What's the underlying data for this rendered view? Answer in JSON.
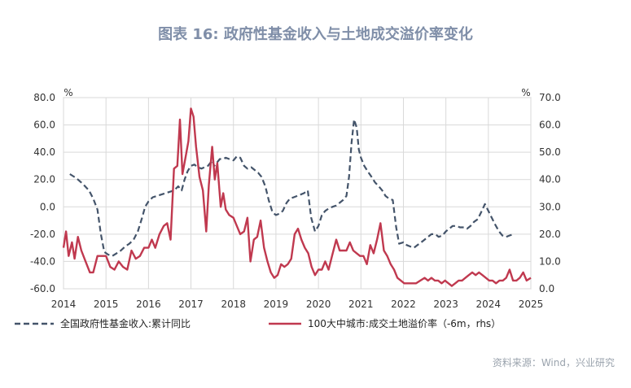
{
  "title": "图表 16: 政府性基金收入与土地成交溢价率变化",
  "source": "资料来源：Wind，兴业研究",
  "chart_data": {
    "type": "line",
    "x_ticks": [
      "2014",
      "2015",
      "2016",
      "2017",
      "2018",
      "2019",
      "2020",
      "2021",
      "2022",
      "2023",
      "2024",
      "2025"
    ],
    "y_left": {
      "unit": "%",
      "min": -60,
      "max": 80,
      "ticks": [
        "80.0",
        "60.0",
        "40.0",
        "20.0",
        "0.0",
        "-20.0",
        "-40.0",
        "-60.0"
      ]
    },
    "y_right": {
      "unit": "%",
      "min": 0,
      "max": 70,
      "ticks": [
        "70.0",
        "60.0",
        "50.0",
        "40.0",
        "30.0",
        "20.0",
        "10.0",
        "0.0"
      ]
    },
    "grid": true,
    "legend_position": "bottom",
    "series": [
      {
        "name": "全国政府性基金收入:累计同比",
        "axis": "left",
        "style": "dashed",
        "color": "#44546a",
        "points": [
          [
            2014.15,
            24
          ],
          [
            2014.3,
            21
          ],
          [
            2014.45,
            17
          ],
          [
            2014.6,
            12
          ],
          [
            2014.7,
            6
          ],
          [
            2014.8,
            -2
          ],
          [
            2014.88,
            -20
          ],
          [
            2014.96,
            -33
          ],
          [
            2015.05,
            -35
          ],
          [
            2015.15,
            -36
          ],
          [
            2015.25,
            -34
          ],
          [
            2015.35,
            -32
          ],
          [
            2015.45,
            -29
          ],
          [
            2015.55,
            -27
          ],
          [
            2015.65,
            -24
          ],
          [
            2015.75,
            -18
          ],
          [
            2015.85,
            -8
          ],
          [
            2015.92,
            0
          ],
          [
            2016.0,
            4
          ],
          [
            2016.1,
            7
          ],
          [
            2016.2,
            8
          ],
          [
            2016.3,
            9
          ],
          [
            2016.4,
            10
          ],
          [
            2016.5,
            11
          ],
          [
            2016.6,
            12
          ],
          [
            2016.7,
            15
          ],
          [
            2016.78,
            12
          ],
          [
            2016.85,
            20
          ],
          [
            2016.92,
            26
          ],
          [
            2017.0,
            30
          ],
          [
            2017.08,
            31
          ],
          [
            2017.16,
            29
          ],
          [
            2017.25,
            28
          ],
          [
            2017.32,
            29
          ],
          [
            2017.4,
            30
          ],
          [
            2017.5,
            34
          ],
          [
            2017.55,
            30
          ],
          [
            2017.6,
            32
          ],
          [
            2017.68,
            35
          ],
          [
            2017.75,
            35
          ],
          [
            2017.82,
            36
          ],
          [
            2017.9,
            35
          ],
          [
            2018.0,
            34
          ],
          [
            2018.08,
            37
          ],
          [
            2018.16,
            36
          ],
          [
            2018.25,
            30
          ],
          [
            2018.33,
            28
          ],
          [
            2018.42,
            29
          ],
          [
            2018.5,
            27
          ],
          [
            2018.58,
            25
          ],
          [
            2018.66,
            22
          ],
          [
            2018.75,
            15
          ],
          [
            2018.83,
            5
          ],
          [
            2018.92,
            -4
          ],
          [
            2019.0,
            -6
          ],
          [
            2019.08,
            -5
          ],
          [
            2019.16,
            -3
          ],
          [
            2019.25,
            3
          ],
          [
            2019.33,
            6
          ],
          [
            2019.42,
            7
          ],
          [
            2019.5,
            8
          ],
          [
            2019.58,
            9
          ],
          [
            2019.66,
            10
          ],
          [
            2019.75,
            12
          ],
          [
            2019.83,
            -8
          ],
          [
            2019.92,
            -18
          ],
          [
            2020.0,
            -14
          ],
          [
            2020.08,
            -6
          ],
          [
            2020.16,
            -3
          ],
          [
            2020.25,
            -1
          ],
          [
            2020.33,
            0
          ],
          [
            2020.42,
            1
          ],
          [
            2020.5,
            3
          ],
          [
            2020.58,
            5
          ],
          [
            2020.66,
            8
          ],
          [
            2020.72,
            22
          ],
          [
            2020.78,
            47
          ],
          [
            2020.84,
            64
          ],
          [
            2020.9,
            58
          ],
          [
            2020.95,
            42
          ],
          [
            2021.0,
            36
          ],
          [
            2021.08,
            30
          ],
          [
            2021.16,
            26
          ],
          [
            2021.25,
            22
          ],
          [
            2021.33,
            18
          ],
          [
            2021.42,
            15
          ],
          [
            2021.5,
            12
          ],
          [
            2021.58,
            8
          ],
          [
            2021.66,
            6
          ],
          [
            2021.75,
            5
          ],
          [
            2021.83,
            -15
          ],
          [
            2021.9,
            -27
          ],
          [
            2022.0,
            -26
          ],
          [
            2022.08,
            -28
          ],
          [
            2022.16,
            -29
          ],
          [
            2022.25,
            -30
          ],
          [
            2022.33,
            -28
          ],
          [
            2022.42,
            -26
          ],
          [
            2022.5,
            -24
          ],
          [
            2022.58,
            -22
          ],
          [
            2022.66,
            -20
          ],
          [
            2022.75,
            -20
          ],
          [
            2022.83,
            -22
          ],
          [
            2022.92,
            -21
          ],
          [
            2023.0,
            -18
          ],
          [
            2023.08,
            -16
          ],
          [
            2023.16,
            -14
          ],
          [
            2023.25,
            -14
          ],
          [
            2023.33,
            -15
          ],
          [
            2023.42,
            -15
          ],
          [
            2023.5,
            -16
          ],
          [
            2023.58,
            -14
          ],
          [
            2023.66,
            -11
          ],
          [
            2023.75,
            -9
          ],
          [
            2023.83,
            -4
          ],
          [
            2023.92,
            2
          ],
          [
            2024.0,
            -3
          ],
          [
            2024.08,
            -8
          ],
          [
            2024.16,
            -13
          ],
          [
            2024.25,
            -18
          ],
          [
            2024.33,
            -21
          ],
          [
            2024.42,
            -22
          ],
          [
            2024.5,
            -21
          ],
          [
            2024.6,
            -20
          ]
        ]
      },
      {
        "name": "100大中城市:成交土地溢价率（-6m，rhs）",
        "axis": "right",
        "style": "solid",
        "color": "#c0394f",
        "points": [
          [
            2014.0,
            15
          ],
          [
            2014.06,
            21
          ],
          [
            2014.12,
            12
          ],
          [
            2014.2,
            17
          ],
          [
            2014.26,
            11
          ],
          [
            2014.34,
            19
          ],
          [
            2014.42,
            14
          ],
          [
            2014.52,
            10
          ],
          [
            2014.62,
            6
          ],
          [
            2014.7,
            6
          ],
          [
            2014.8,
            12
          ],
          [
            2014.9,
            12
          ],
          [
            2015.0,
            12
          ],
          [
            2015.1,
            8
          ],
          [
            2015.2,
            7
          ],
          [
            2015.3,
            10
          ],
          [
            2015.4,
            8
          ],
          [
            2015.5,
            7
          ],
          [
            2015.6,
            14
          ],
          [
            2015.7,
            11
          ],
          [
            2015.8,
            12
          ],
          [
            2015.9,
            15
          ],
          [
            2016.0,
            15
          ],
          [
            2016.08,
            18
          ],
          [
            2016.16,
            15
          ],
          [
            2016.26,
            20
          ],
          [
            2016.36,
            23
          ],
          [
            2016.44,
            24
          ],
          [
            2016.52,
            18
          ],
          [
            2016.6,
            44
          ],
          [
            2016.68,
            45
          ],
          [
            2016.74,
            62
          ],
          [
            2016.8,
            42
          ],
          [
            2016.86,
            47
          ],
          [
            2016.94,
            54
          ],
          [
            2017.0,
            66
          ],
          [
            2017.06,
            63
          ],
          [
            2017.12,
            52
          ],
          [
            2017.2,
            41
          ],
          [
            2017.28,
            36
          ],
          [
            2017.36,
            21
          ],
          [
            2017.42,
            38
          ],
          [
            2017.5,
            52
          ],
          [
            2017.56,
            40
          ],
          [
            2017.62,
            46
          ],
          [
            2017.7,
            30
          ],
          [
            2017.76,
            35
          ],
          [
            2017.82,
            29
          ],
          [
            2017.9,
            27
          ],
          [
            2018.0,
            26
          ],
          [
            2018.08,
            23
          ],
          [
            2018.16,
            20
          ],
          [
            2018.25,
            21
          ],
          [
            2018.33,
            26
          ],
          [
            2018.4,
            10
          ],
          [
            2018.48,
            18
          ],
          [
            2018.56,
            19
          ],
          [
            2018.64,
            25
          ],
          [
            2018.72,
            15
          ],
          [
            2018.8,
            10
          ],
          [
            2018.88,
            6
          ],
          [
            2018.96,
            4
          ],
          [
            2019.04,
            5
          ],
          [
            2019.12,
            9
          ],
          [
            2019.2,
            8
          ],
          [
            2019.28,
            9
          ],
          [
            2019.36,
            11
          ],
          [
            2019.44,
            20
          ],
          [
            2019.52,
            22
          ],
          [
            2019.6,
            18
          ],
          [
            2019.68,
            15
          ],
          [
            2019.76,
            13
          ],
          [
            2019.84,
            8
          ],
          [
            2019.92,
            5
          ],
          [
            2020.0,
            7
          ],
          [
            2020.08,
            7
          ],
          [
            2020.16,
            10
          ],
          [
            2020.24,
            7
          ],
          [
            2020.32,
            12
          ],
          [
            2020.42,
            18
          ],
          [
            2020.5,
            14
          ],
          [
            2020.58,
            14
          ],
          [
            2020.66,
            14
          ],
          [
            2020.74,
            17
          ],
          [
            2020.82,
            14
          ],
          [
            2020.9,
            13
          ],
          [
            2020.98,
            12
          ],
          [
            2021.06,
            12
          ],
          [
            2021.14,
            9
          ],
          [
            2021.22,
            16
          ],
          [
            2021.3,
            13
          ],
          [
            2021.38,
            18
          ],
          [
            2021.46,
            24
          ],
          [
            2021.54,
            14
          ],
          [
            2021.62,
            12
          ],
          [
            2021.7,
            9
          ],
          [
            2021.78,
            7
          ],
          [
            2021.86,
            4
          ],
          [
            2021.94,
            3
          ],
          [
            2022.02,
            2
          ],
          [
            2022.1,
            2
          ],
          [
            2022.2,
            2
          ],
          [
            2022.3,
            2
          ],
          [
            2022.4,
            3
          ],
          [
            2022.5,
            4
          ],
          [
            2022.58,
            3
          ],
          [
            2022.66,
            4
          ],
          [
            2022.74,
            3
          ],
          [
            2022.82,
            3
          ],
          [
            2022.9,
            2
          ],
          [
            2022.98,
            3
          ],
          [
            2023.06,
            2
          ],
          [
            2023.14,
            1
          ],
          [
            2023.22,
            2
          ],
          [
            2023.3,
            3
          ],
          [
            2023.38,
            3
          ],
          [
            2023.46,
            4
          ],
          [
            2023.54,
            5
          ],
          [
            2023.62,
            6
          ],
          [
            2023.7,
            5
          ],
          [
            2023.78,
            6
          ],
          [
            2023.86,
            5
          ],
          [
            2023.94,
            4
          ],
          [
            2024.02,
            3
          ],
          [
            2024.1,
            3
          ],
          [
            2024.18,
            2
          ],
          [
            2024.26,
            3
          ],
          [
            2024.34,
            3
          ],
          [
            2024.42,
            4
          ],
          [
            2024.5,
            7
          ],
          [
            2024.58,
            3
          ],
          [
            2024.66,
            3
          ],
          [
            2024.74,
            4
          ],
          [
            2024.82,
            6
          ],
          [
            2024.9,
            3
          ],
          [
            2025.0,
            4
          ]
        ]
      }
    ]
  }
}
